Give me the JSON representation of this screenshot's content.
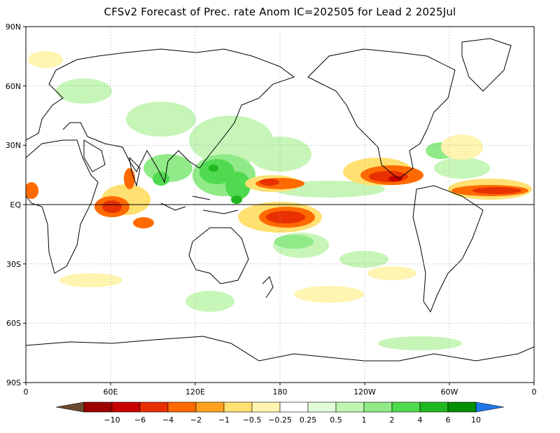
{
  "title": "CFSv2 Forecast of Prec. rate Anom IC=202505 for Lead 2 2025Jul",
  "y_ticks": [
    "90N",
    "60N",
    "30N",
    "EQ",
    "30S",
    "60S",
    "90S"
  ],
  "x_ticks": [
    "0",
    "60E",
    "120E",
    "180",
    "120W",
    "60W",
    "0"
  ],
  "colorbar": {
    "labels": [
      "−10",
      "−6",
      "−4",
      "−2",
      "−1",
      "−0.5",
      "−0.25",
      "0.25",
      "0.5",
      "1",
      "2",
      "4",
      "6",
      "10"
    ],
    "colors": [
      "#6b4a2e",
      "#9e0000",
      "#c80000",
      "#e83000",
      "#ff6a00",
      "#ffa020",
      "#ffe070",
      "#fff4b0",
      "#ffffff",
      "#e2fbd8",
      "#c0f5b0",
      "#90ea88",
      "#50da50",
      "#20b820",
      "#009000",
      "#1e78e8"
    ]
  },
  "land_color": "#ffffff",
  "coast_color": "#000000"
}
